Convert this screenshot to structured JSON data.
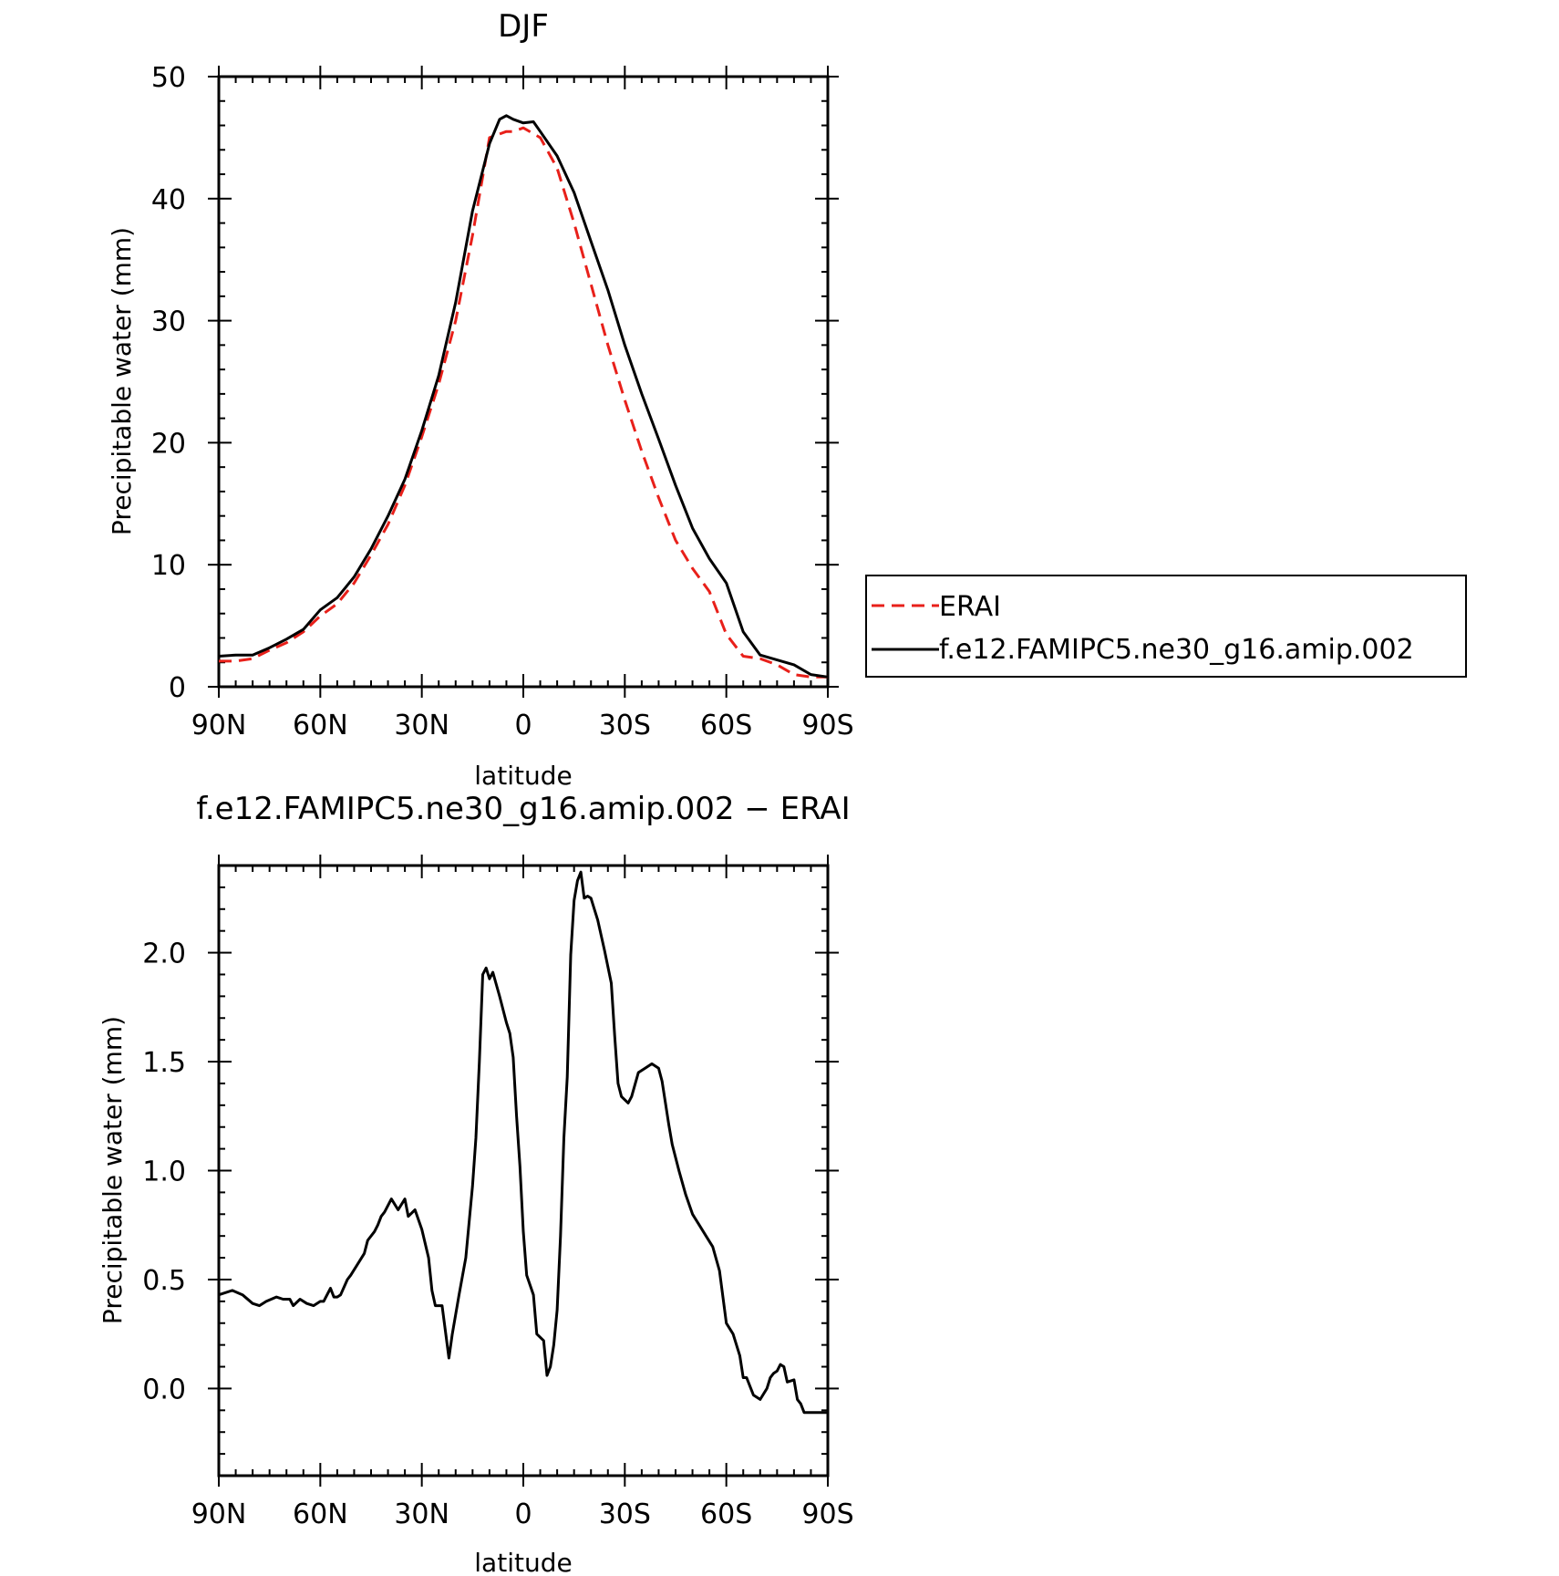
{
  "chart_data": [
    {
      "type": "line",
      "title": "DJF",
      "xlabel": "latitude",
      "ylabel": "Precipitable water (mm)",
      "xlim": [
        90,
        -90
      ],
      "ylim": [
        0,
        50
      ],
      "x_ticks": [
        {
          "value": 90,
          "label": "90N"
        },
        {
          "value": 60,
          "label": "60N"
        },
        {
          "value": 30,
          "label": "30N"
        },
        {
          "value": 0,
          "label": "0"
        },
        {
          "value": -30,
          "label": "30S"
        },
        {
          "value": -60,
          "label": "60S"
        },
        {
          "value": -90,
          "label": "90S"
        }
      ],
      "y_ticks": [
        {
          "value": 0,
          "label": "0"
        },
        {
          "value": 10,
          "label": "10"
        },
        {
          "value": 20,
          "label": "20"
        },
        {
          "value": 30,
          "label": "30"
        },
        {
          "value": 40,
          "label": "40"
        },
        {
          "value": 50,
          "label": "50"
        }
      ],
      "grid": false,
      "legend_position": "right",
      "series": [
        {
          "name": "ERAI",
          "color": "#e8201a",
          "dash": "dashed",
          "x": [
            90,
            85,
            80,
            75,
            70,
            65,
            60,
            55,
            50,
            45,
            40,
            35,
            30,
            25,
            20,
            15,
            10,
            5,
            3,
            0,
            -5,
            -10,
            -15,
            -20,
            -25,
            -30,
            -35,
            -40,
            -45,
            -50,
            -55,
            -60,
            -65,
            -70,
            -75,
            -80,
            -85,
            -90
          ],
          "y": [
            2.1,
            2.1,
            2.3,
            3.0,
            3.6,
            4.5,
            5.8,
            6.8,
            8.5,
            10.8,
            13.3,
            16.5,
            20.5,
            24.8,
            30.0,
            37.0,
            45.0,
            45.5,
            45.5,
            45.8,
            45.0,
            42.5,
            38.0,
            33.0,
            28.0,
            23.5,
            19.3,
            15.5,
            12.0,
            9.7,
            7.8,
            4.3,
            2.5,
            2.3,
            1.8,
            1.0,
            0.8,
            0.8
          ]
        },
        {
          "name": "f.e12.FAMIPC5.ne30_g16.amip.002",
          "color": "#000000",
          "dash": "solid",
          "x": [
            90,
            85,
            80,
            75,
            70,
            65,
            60,
            55,
            50,
            45,
            40,
            35,
            30,
            25,
            20,
            15,
            10,
            7,
            5,
            3,
            0,
            -3,
            -5,
            -10,
            -15,
            -20,
            -25,
            -30,
            -35,
            -40,
            -45,
            -50,
            -55,
            -60,
            -65,
            -70,
            -75,
            -80,
            -85,
            -90
          ],
          "y": [
            2.5,
            2.6,
            2.6,
            3.2,
            3.9,
            4.7,
            6.3,
            7.3,
            9.0,
            11.3,
            14.0,
            17.0,
            21.0,
            25.5,
            31.5,
            39.0,
            44.5,
            46.5,
            46.8,
            46.5,
            46.2,
            46.3,
            45.5,
            43.5,
            40.5,
            36.5,
            32.5,
            28.0,
            24.0,
            20.3,
            16.5,
            13.0,
            10.5,
            8.5,
            4.5,
            2.6,
            2.2,
            1.8,
            1.0,
            0.8
          ]
        }
      ]
    },
    {
      "type": "line",
      "title": "f.e12.FAMIPC5.ne30_g16.amip.002 − ERAI",
      "xlabel": "latitude",
      "ylabel": "Precipitable water (mm)",
      "xlim": [
        90,
        -90
      ],
      "ylim": [
        -0.4,
        2.4
      ],
      "x_ticks": [
        {
          "value": 90,
          "label": "90N"
        },
        {
          "value": 60,
          "label": "60N"
        },
        {
          "value": 30,
          "label": "30N"
        },
        {
          "value": 0,
          "label": "0"
        },
        {
          "value": -30,
          "label": "30S"
        },
        {
          "value": -60,
          "label": "60S"
        },
        {
          "value": -90,
          "label": "90S"
        }
      ],
      "y_ticks": [
        {
          "value": 0.0,
          "label": "0.0"
        },
        {
          "value": 0.5,
          "label": "0.5"
        },
        {
          "value": 1.0,
          "label": "1.0"
        },
        {
          "value": 1.5,
          "label": "1.5"
        },
        {
          "value": 2.0,
          "label": "2.0"
        }
      ],
      "grid": false,
      "series": [
        {
          "color": "#000000",
          "dash": "solid",
          "x": [
            90,
            86,
            83,
            80,
            78,
            76,
            73,
            71,
            69,
            68,
            66,
            64,
            62,
            60,
            59,
            57,
            56,
            55,
            54,
            52,
            51,
            49,
            47,
            46,
            44,
            43,
            42,
            41,
            39,
            37,
            35,
            34,
            32,
            30,
            28,
            27,
            26,
            24,
            22,
            21,
            20,
            19,
            17,
            15,
            14,
            13,
            12,
            11,
            10,
            9,
            7,
            5,
            4,
            3,
            2,
            1,
            0,
            -1,
            -3,
            -4,
            -6,
            -7,
            -8,
            -9,
            -10,
            -11,
            -12,
            -13,
            -14,
            -15,
            -16,
            -17,
            -18,
            -19,
            -20,
            -21,
            -22,
            -24,
            -26,
            -27,
            -28,
            -29,
            -31,
            -32,
            -34,
            -36,
            -38,
            -40,
            -41,
            -42,
            -43,
            -44,
            -46,
            -48,
            -50,
            -52,
            -54,
            -56,
            -58,
            -60,
            -62,
            -64,
            -65,
            -66,
            -68,
            -70,
            -72,
            -73,
            -74,
            -75,
            -76,
            -77,
            -78,
            -80,
            -81,
            -82,
            -83,
            -84,
            -85,
            -86,
            -87,
            -88,
            -89,
            -90
          ],
          "y": [
            0.43,
            0.45,
            0.43,
            0.39,
            0.38,
            0.4,
            0.42,
            0.41,
            0.41,
            0.38,
            0.41,
            0.39,
            0.38,
            0.4,
            0.4,
            0.46,
            0.42,
            0.42,
            0.43,
            0.5,
            0.52,
            0.57,
            0.62,
            0.68,
            0.72,
            0.75,
            0.79,
            0.81,
            0.87,
            0.82,
            0.87,
            0.79,
            0.82,
            0.73,
            0.6,
            0.45,
            0.38,
            0.38,
            0.14,
            0.25,
            0.34,
            0.43,
            0.6,
            0.93,
            1.15,
            1.5,
            1.9,
            1.93,
            1.88,
            1.91,
            1.8,
            1.68,
            1.63,
            1.52,
            1.25,
            1.02,
            0.72,
            0.52,
            0.43,
            0.25,
            0.22,
            0.06,
            0.1,
            0.2,
            0.36,
            0.7,
            1.15,
            1.43,
            1.99,
            2.24,
            2.33,
            2.37,
            2.25,
            2.26,
            2.25,
            2.2,
            2.15,
            2.01,
            1.86,
            1.62,
            1.4,
            1.34,
            1.31,
            1.34,
            1.45,
            1.47,
            1.49,
            1.47,
            1.41,
            1.31,
            1.21,
            1.12,
            1.0,
            0.89,
            0.8,
            0.75,
            0.7,
            0.65,
            0.54,
            0.3,
            0.25,
            0.15,
            0.05,
            0.05,
            -0.03,
            -0.05,
            0.0,
            0.05,
            0.07,
            0.08,
            0.11,
            0.1,
            0.03,
            0.04,
            -0.05,
            -0.07,
            -0.11,
            -0.11,
            -0.11,
            -0.11,
            -0.11,
            -0.11,
            -0.11,
            -0.11
          ]
        }
      ]
    }
  ]
}
